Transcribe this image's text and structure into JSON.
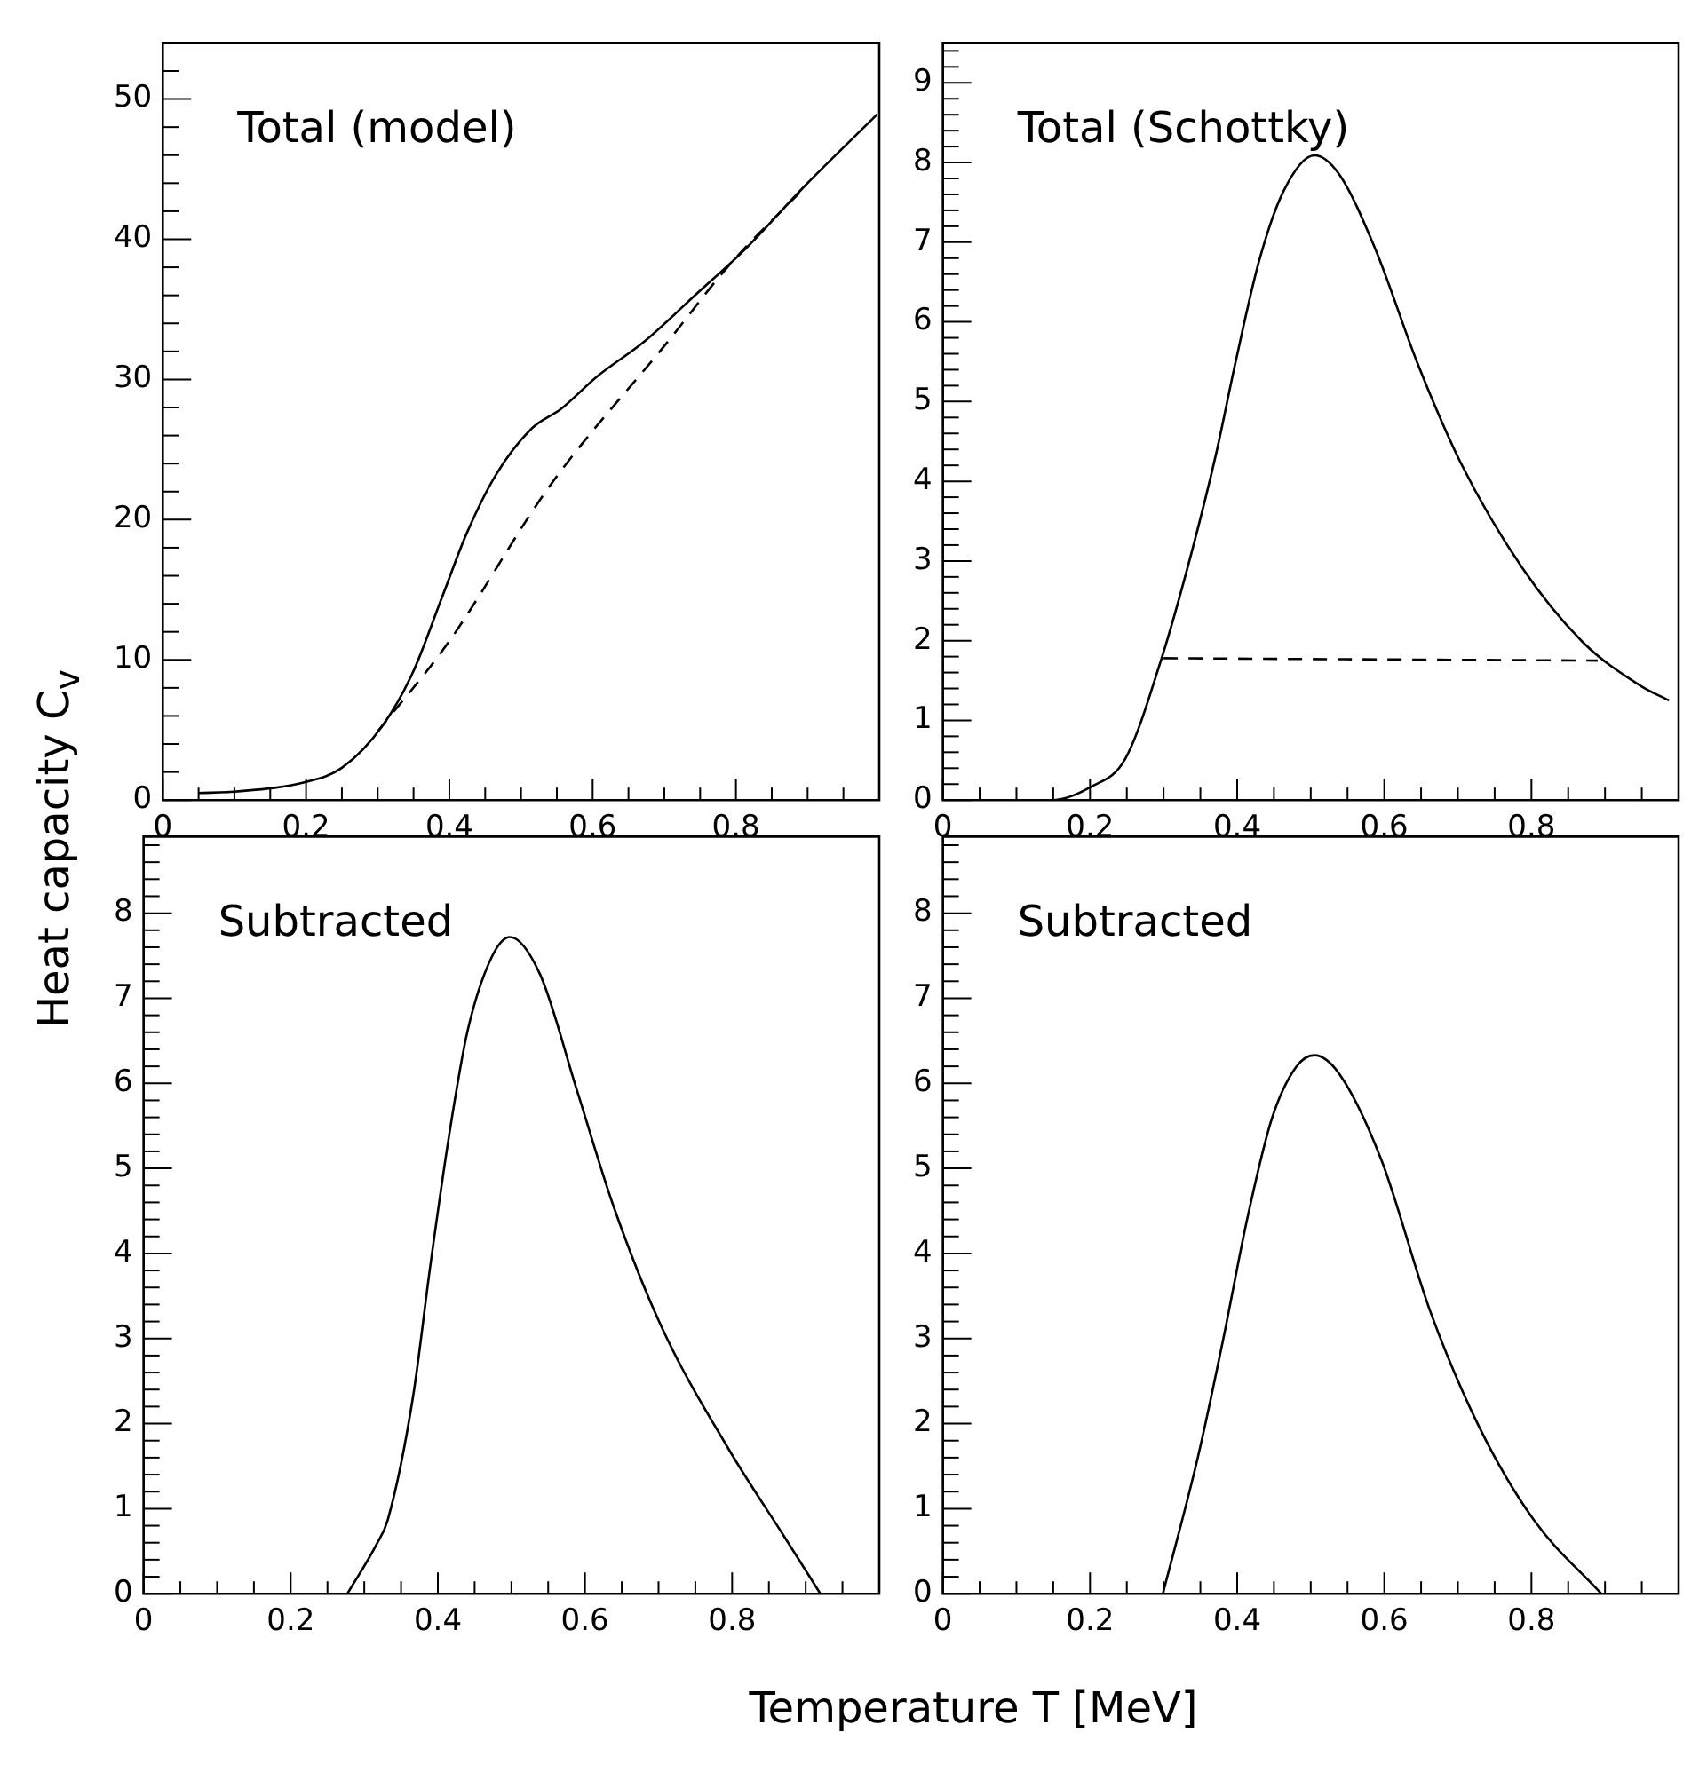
{
  "chart_data": [
    {
      "type": "line",
      "title": "Total (model)",
      "ylabel": "Heat capacity C$_{v}$",
      "xlim": [
        0,
        1
      ],
      "ylim": [
        0,
        54
      ],
      "xticks": [
        0,
        {
          "value": 0.05,
          "label": null
        },
        {
          "value": 0.1,
          "label": null
        },
        {
          "value": 0.15,
          "label": null
        },
        0.2,
        {
          "value": 0.25,
          "label": null
        },
        {
          "value": 0.3,
          "label": null
        },
        {
          "value": 0.35,
          "label": null
        },
        0.4,
        {
          "value": 0.45,
          "label": null
        },
        {
          "value": 0.5,
          "label": null
        },
        {
          "value": 0.55,
          "label": null
        },
        0.6,
        {
          "value": 0.65,
          "label": null
        },
        {
          "value": 0.7,
          "label": null
        },
        {
          "value": 0.75,
          "label": null
        },
        0.8,
        {
          "value": 0.85,
          "label": null
        },
        {
          "value": 0.9,
          "label": null
        },
        {
          "value": 0.95,
          "label": null
        }
      ],
      "yticks": [
        0,
        {
          "value": 2,
          "label": null
        },
        {
          "value": 4,
          "label": null
        },
        {
          "value": 6,
          "label": null
        },
        {
          "value": 8,
          "label": null
        },
        10,
        {
          "value": 12,
          "label": null
        },
        {
          "value": 14,
          "label": null
        },
        {
          "value": 16,
          "label": null
        },
        {
          "value": 18,
          "label": null
        },
        20,
        {
          "value": 22,
          "label": null
        },
        {
          "value": 24,
          "label": null
        },
        {
          "value": 26,
          "label": null
        },
        {
          "value": 28,
          "label": null
        },
        30,
        {
          "value": 32,
          "label": null
        },
        {
          "value": 34,
          "label": null
        },
        {
          "value": 36,
          "label": null
        },
        {
          "value": 38,
          "label": null
        },
        40,
        {
          "value": 42,
          "label": null
        },
        {
          "value": 44,
          "label": null
        },
        {
          "value": 46,
          "label": null
        },
        {
          "value": 48,
          "label": null
        },
        50,
        {
          "value": 52,
          "label": null
        }
      ],
      "series": [
        {
          "color": "#000000",
          "x": [
            0.05,
            0.1,
            0.2,
            0.25,
            0.308,
            0.349,
            0.39,
            0.424,
            0.465,
            0.515,
            0.556,
            0.606,
            0.672,
            0.747,
            0.813,
            0.896,
            0.997
          ],
          "values": [
            0.5,
            0.6,
            1.3,
            2.3,
            5.4,
            9.1,
            14.5,
            19,
            23.2,
            26.5,
            27.9,
            30.2,
            32.7,
            36.2,
            39.3,
            43.8,
            48.9
          ]
        },
        {
          "color": "#000000",
          "line_style": "dashed",
          "x": [
            0.3,
            0.398,
            0.54,
            0.705,
            0.788,
            0.896
          ],
          "values": [
            4.9,
            11.2,
            22.4,
            32.7,
            38.0,
            43.7
          ]
        }
      ]
    },
    {
      "type": "line",
      "title": "Total (Schottky)",
      "xlim": [
        0,
        1
      ],
      "ylim": [
        0,
        9.5
      ],
      "xticks": [
        0,
        {
          "value": 0.05,
          "label": null
        },
        {
          "value": 0.1,
          "label": null
        },
        {
          "value": 0.15,
          "label": null
        },
        0.2,
        {
          "value": 0.25,
          "label": null
        },
        {
          "value": 0.3,
          "label": null
        },
        {
          "value": 0.35,
          "label": null
        },
        0.4,
        {
          "value": 0.45,
          "label": null
        },
        {
          "value": 0.5,
          "label": null
        },
        {
          "value": 0.55,
          "label": null
        },
        0.6,
        {
          "value": 0.65,
          "label": null
        },
        {
          "value": 0.7,
          "label": null
        },
        {
          "value": 0.75,
          "label": null
        },
        0.8,
        {
          "value": 0.85,
          "label": null
        },
        {
          "value": 0.9,
          "label": null
        },
        {
          "value": 0.95,
          "label": null
        }
      ],
      "yticks": [
        0,
        {
          "value": 0.2,
          "label": null
        },
        {
          "value": 0.4,
          "label": null
        },
        {
          "value": 0.6,
          "label": null
        },
        {
          "value": 0.8,
          "label": null
        },
        1,
        {
          "value": 1.2,
          "label": null
        },
        {
          "value": 1.4,
          "label": null
        },
        {
          "value": 1.6,
          "label": null
        },
        {
          "value": 1.8,
          "label": null
        },
        2,
        {
          "value": 2.2,
          "label": null
        },
        {
          "value": 2.4,
          "label": null
        },
        {
          "value": 2.6,
          "label": null
        },
        {
          "value": 2.8,
          "label": null
        },
        3,
        {
          "value": 3.2,
          "label": null
        },
        {
          "value": 3.4,
          "label": null
        },
        {
          "value": 3.6,
          "label": null
        },
        {
          "value": 3.8,
          "label": null
        },
        4,
        {
          "value": 4.2,
          "label": null
        },
        {
          "value": 4.4,
          "label": null
        },
        {
          "value": 4.6,
          "label": null
        },
        {
          "value": 4.8,
          "label": null
        },
        5,
        {
          "value": 5.2,
          "label": null
        },
        {
          "value": 5.4,
          "label": null
        },
        {
          "value": 5.6,
          "label": null
        },
        {
          "value": 5.8,
          "label": null
        },
        6,
        {
          "value": 6.2,
          "label": null
        },
        {
          "value": 6.4,
          "label": null
        },
        {
          "value": 6.6,
          "label": null
        },
        {
          "value": 6.8,
          "label": null
        },
        7,
        {
          "value": 7.2,
          "label": null
        },
        {
          "value": 7.4,
          "label": null
        },
        {
          "value": 7.6,
          "label": null
        },
        {
          "value": 7.8,
          "label": null
        },
        8,
        {
          "value": 8.2,
          "label": null
        },
        {
          "value": 8.4,
          "label": null
        },
        {
          "value": 8.6,
          "label": null
        },
        {
          "value": 8.8,
          "label": null
        },
        9,
        {
          "value": 9.2,
          "label": null
        },
        {
          "value": 9.4,
          "label": null
        }
      ],
      "series": [
        {
          "color": "#000000",
          "x": [
            0,
            0.148,
            0.2,
            0.248,
            0.297,
            0.339,
            0.372,
            0.397,
            0.43,
            0.463,
            0.505,
            0.538,
            0.588,
            0.646,
            0.704,
            0.787,
            0.87,
            0.949,
            0.987
          ],
          "values": [
            0,
            0,
            0.16,
            0.52,
            1.77,
            3.14,
            4.37,
            5.46,
            6.77,
            7.64,
            8.09,
            7.86,
            6.91,
            5.46,
            4.23,
            2.92,
            1.98,
            1.43,
            1.25
          ]
        },
        {
          "color": "#000000",
          "line_style": "dashed",
          "x": [
            0.3,
            0.89
          ],
          "values": [
            1.78,
            1.75
          ]
        }
      ]
    },
    {
      "type": "line",
      "title": "Subtracted",
      "xlabel": "Temperature T [MeV]",
      "xlim": [
        0,
        1
      ],
      "ylim": [
        0,
        8.9
      ],
      "xticks": [
        0,
        {
          "value": 0.05,
          "label": null
        },
        {
          "value": 0.1,
          "label": null
        },
        {
          "value": 0.15,
          "label": null
        },
        0.2,
        {
          "value": 0.25,
          "label": null
        },
        {
          "value": 0.3,
          "label": null
        },
        {
          "value": 0.35,
          "label": null
        },
        0.4,
        {
          "value": 0.45,
          "label": null
        },
        {
          "value": 0.5,
          "label": null
        },
        {
          "value": 0.55,
          "label": null
        },
        0.6,
        {
          "value": 0.65,
          "label": null
        },
        {
          "value": 0.7,
          "label": null
        },
        {
          "value": 0.75,
          "label": null
        },
        0.8,
        {
          "value": 0.85,
          "label": null
        },
        {
          "value": 0.9,
          "label": null
        },
        {
          "value": 0.95,
          "label": null
        }
      ],
      "yticks": [
        0,
        {
          "value": 0.2,
          "label": null
        },
        {
          "value": 0.4,
          "label": null
        },
        {
          "value": 0.6,
          "label": null
        },
        {
          "value": 0.8,
          "label": null
        },
        1,
        {
          "value": 1.2,
          "label": null
        },
        {
          "value": 1.4,
          "label": null
        },
        {
          "value": 1.6,
          "label": null
        },
        {
          "value": 1.8,
          "label": null
        },
        2,
        {
          "value": 2.2,
          "label": null
        },
        {
          "value": 2.4,
          "label": null
        },
        {
          "value": 2.6,
          "label": null
        },
        {
          "value": 2.8,
          "label": null
        },
        3,
        {
          "value": 3.2,
          "label": null
        },
        {
          "value": 3.4,
          "label": null
        },
        {
          "value": 3.6,
          "label": null
        },
        {
          "value": 3.8,
          "label": null
        },
        4,
        {
          "value": 4.2,
          "label": null
        },
        {
          "value": 4.4,
          "label": null
        },
        {
          "value": 4.6,
          "label": null
        },
        {
          "value": 4.8,
          "label": null
        },
        5,
        {
          "value": 5.2,
          "label": null
        },
        {
          "value": 5.4,
          "label": null
        },
        {
          "value": 5.6,
          "label": null
        },
        {
          "value": 5.8,
          "label": null
        },
        6,
        {
          "value": 6.2,
          "label": null
        },
        {
          "value": 6.4,
          "label": null
        },
        {
          "value": 6.6,
          "label": null
        },
        {
          "value": 6.8,
          "label": null
        },
        7,
        {
          "value": 7.2,
          "label": null
        },
        {
          "value": 7.4,
          "label": null
        },
        {
          "value": 7.6,
          "label": null
        },
        {
          "value": 7.8,
          "label": null
        },
        8,
        {
          "value": 8.2,
          "label": null
        },
        {
          "value": 8.4,
          "label": null
        },
        {
          "value": 8.6,
          "label": null
        },
        {
          "value": 8.8,
          "label": null
        }
      ],
      "series": [
        {
          "color": "#000000",
          "x": [
            0.277,
            0.316,
            0.332,
            0.366,
            0.39,
            0.415,
            0.44,
            0.473,
            0.498,
            0.539,
            0.589,
            0.639,
            0.705,
            0.796,
            0.871,
            0.92
          ],
          "values": [
            0,
            0.57,
            0.87,
            2.3,
            3.87,
            5.37,
            6.6,
            7.48,
            7.72,
            7.28,
            5.92,
            4.55,
            3.12,
            1.69,
            0.67,
            0
          ]
        }
      ]
    },
    {
      "type": "line",
      "title": "Subtracted",
      "xlim": [
        0,
        1
      ],
      "ylim": [
        0,
        8.9
      ],
      "xticks": [
        0,
        {
          "value": 0.05,
          "label": null
        },
        {
          "value": 0.1,
          "label": null
        },
        {
          "value": 0.15,
          "label": null
        },
        0.2,
        {
          "value": 0.25,
          "label": null
        },
        {
          "value": 0.3,
          "label": null
        },
        {
          "value": 0.35,
          "label": null
        },
        0.4,
        {
          "value": 0.45,
          "label": null
        },
        {
          "value": 0.5,
          "label": null
        },
        {
          "value": 0.55,
          "label": null
        },
        0.6,
        {
          "value": 0.65,
          "label": null
        },
        {
          "value": 0.7,
          "label": null
        },
        {
          "value": 0.75,
          "label": null
        },
        0.8,
        {
          "value": 0.85,
          "label": null
        },
        {
          "value": 0.9,
          "label": null
        },
        {
          "value": 0.95,
          "label": null
        }
      ],
      "yticks": [
        0,
        {
          "value": 0.2,
          "label": null
        },
        {
          "value": 0.4,
          "label": null
        },
        {
          "value": 0.6,
          "label": null
        },
        {
          "value": 0.8,
          "label": null
        },
        1,
        {
          "value": 1.2,
          "label": null
        },
        {
          "value": 1.4,
          "label": null
        },
        {
          "value": 1.6,
          "label": null
        },
        {
          "value": 1.8,
          "label": null
        },
        2,
        {
          "value": 2.2,
          "label": null
        },
        {
          "value": 2.4,
          "label": null
        },
        {
          "value": 2.6,
          "label": null
        },
        {
          "value": 2.8,
          "label": null
        },
        3,
        {
          "value": 3.2,
          "label": null
        },
        {
          "value": 3.4,
          "label": null
        },
        {
          "value": 3.6,
          "label": null
        },
        {
          "value": 3.8,
          "label": null
        },
        4,
        {
          "value": 4.2,
          "label": null
        },
        {
          "value": 4.4,
          "label": null
        },
        {
          "value": 4.6,
          "label": null
        },
        {
          "value": 4.8,
          "label": null
        },
        5,
        {
          "value": 5.2,
          "label": null
        },
        {
          "value": 5.4,
          "label": null
        },
        {
          "value": 5.6,
          "label": null
        },
        {
          "value": 5.8,
          "label": null
        },
        6,
        {
          "value": 6.2,
          "label": null
        },
        {
          "value": 6.4,
          "label": null
        },
        {
          "value": 6.6,
          "label": null
        },
        {
          "value": 6.8,
          "label": null
        },
        7,
        {
          "value": 7.2,
          "label": null
        },
        {
          "value": 7.4,
          "label": null
        },
        {
          "value": 7.6,
          "label": null
        },
        {
          "value": 7.8,
          "label": null
        },
        8,
        {
          "value": 8.2,
          "label": null
        },
        {
          "value": 8.4,
          "label": null
        },
        {
          "value": 8.6,
          "label": null
        },
        {
          "value": 8.8,
          "label": null
        }
      ],
      "series": [
        {
          "color": "#000000",
          "x": [
            0.299,
            0.347,
            0.381,
            0.414,
            0.447,
            0.48,
            0.505,
            0.538,
            0.596,
            0.662,
            0.729,
            0.803,
            0.895
          ],
          "values": [
            0,
            1.62,
            2.99,
            4.42,
            5.58,
            6.19,
            6.33,
            6.12,
            5.1,
            3.33,
            1.96,
            0.87,
            0
          ]
        }
      ]
    }
  ]
}
